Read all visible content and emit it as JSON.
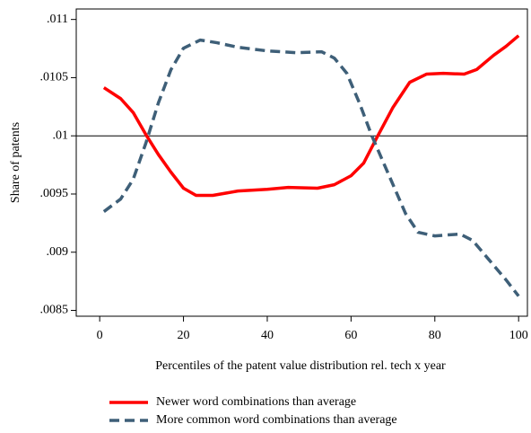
{
  "chart_data": {
    "type": "line",
    "x_label": "Percentiles of the patent value distribution rel. tech x year",
    "y_label": "Share of patents",
    "xlim": [
      -5.6,
      102.1
    ],
    "ylim": [
      0.00845,
      0.01109
    ],
    "xticks": [
      0,
      20,
      40,
      60,
      80,
      100
    ],
    "yticks": [
      {
        "value": 0.0085,
        "label": ".0085"
      },
      {
        "value": 0.009,
        "label": ".009"
      },
      {
        "value": 0.0095,
        "label": ".0095"
      },
      {
        "value": 0.01,
        "label": ".01"
      },
      {
        "value": 0.0105,
        "label": ".0105"
      },
      {
        "value": 0.011,
        "label": ".011"
      }
    ],
    "hline": 0.01,
    "legend": "bottom",
    "series": [
      {
        "name": "Newer word combinations than average",
        "color": "#ff0000",
        "dash": false,
        "x": [
          1,
          5,
          8,
          11,
          14,
          17,
          20,
          23,
          27,
          33,
          40,
          45,
          52,
          56,
          60,
          63,
          66,
          70,
          74,
          78,
          82,
          87,
          90,
          94,
          97,
          100
        ],
        "values": [
          0.010414,
          0.01032,
          0.0102,
          0.010012,
          0.00984,
          0.009688,
          0.00955,
          0.009488,
          0.009488,
          0.009526,
          0.00954,
          0.009557,
          0.00955,
          0.00958,
          0.009657,
          0.009765,
          0.009974,
          0.010244,
          0.01046,
          0.01053,
          0.010537,
          0.01053,
          0.01057,
          0.010691,
          0.010769,
          0.010861
        ]
      },
      {
        "name": "More common word combinations than average",
        "color": "#3e5f78",
        "dash": true,
        "x": [
          1,
          5,
          8,
          11,
          14,
          17,
          20,
          24,
          28,
          33,
          40,
          47,
          53,
          56,
          59,
          62,
          65,
          69,
          73,
          76,
          80,
          86,
          89,
          93,
          97,
          100
        ],
        "values": [
          0.009349,
          0.009457,
          0.009627,
          0.009935,
          0.010282,
          0.010568,
          0.010753,
          0.010823,
          0.0108,
          0.010761,
          0.01073,
          0.010714,
          0.010722,
          0.010668,
          0.010537,
          0.010282,
          0.009997,
          0.009665,
          0.009333,
          0.009171,
          0.00914,
          0.009156,
          0.009102,
          0.008932,
          0.008762,
          0.008623
        ]
      }
    ]
  }
}
